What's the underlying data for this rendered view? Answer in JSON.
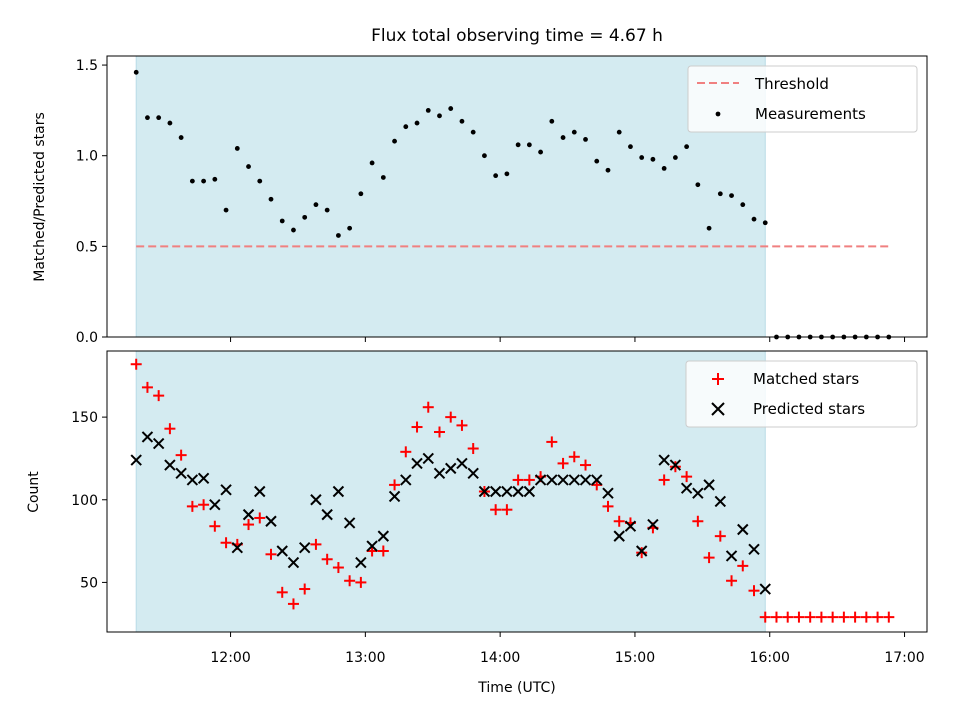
{
  "chart_data": [
    {
      "type": "scatter",
      "title": "Flux total observing time = 4.67 h",
      "xlabel": "",
      "ylabel": "Matched/Predicted stars",
      "xlim": [
        "11:05",
        "17:10"
      ],
      "ylim": [
        0,
        1.55
      ],
      "yticks": [
        "0.0",
        "0.5",
        "1.0",
        "1.5"
      ],
      "ytick_values": [
        0,
        0.5,
        1.0,
        1.5
      ],
      "shaded_x_range": [
        "11:18",
        "15:58"
      ],
      "shade_color": "#d4ebf1",
      "threshold": {
        "name": "Threshold",
        "value": 0.5,
        "x_range": [
          "11:18",
          "16:54"
        ],
        "color": "#f08080"
      },
      "legend_position": "top-right",
      "series": [
        {
          "name": "Measurements",
          "color": "#000000",
          "points": [
            [
              "11:18",
              1.46
            ],
            [
              "11:23",
              1.21
            ],
            [
              "11:28",
              1.21
            ],
            [
              "11:33",
              1.18
            ],
            [
              "11:38",
              1.1
            ],
            [
              "11:43",
              0.86
            ],
            [
              "11:48",
              0.86
            ],
            [
              "11:53",
              0.87
            ],
            [
              "11:58",
              0.7
            ],
            [
              "12:03",
              1.04
            ],
            [
              "12:08",
              0.94
            ],
            [
              "12:13",
              0.86
            ],
            [
              "12:18",
              0.76
            ],
            [
              "12:23",
              0.64
            ],
            [
              "12:28",
              0.59
            ],
            [
              "12:33",
              0.66
            ],
            [
              "12:38",
              0.73
            ],
            [
              "12:43",
              0.7
            ],
            [
              "12:48",
              0.56
            ],
            [
              "12:53",
              0.6
            ],
            [
              "12:58",
              0.79
            ],
            [
              "13:03",
              0.96
            ],
            [
              "13:08",
              0.88
            ],
            [
              "13:13",
              1.08
            ],
            [
              "13:18",
              1.16
            ],
            [
              "13:23",
              1.18
            ],
            [
              "13:28",
              1.25
            ],
            [
              "13:33",
              1.22
            ],
            [
              "13:38",
              1.26
            ],
            [
              "13:43",
              1.19
            ],
            [
              "13:48",
              1.13
            ],
            [
              "13:53",
              1.0
            ],
            [
              "13:58",
              0.89
            ],
            [
              "14:03",
              0.9
            ],
            [
              "14:08",
              1.06
            ],
            [
              "14:13",
              1.06
            ],
            [
              "14:18",
              1.02
            ],
            [
              "14:23",
              1.19
            ],
            [
              "14:28",
              1.1
            ],
            [
              "14:33",
              1.13
            ],
            [
              "14:38",
              1.09
            ],
            [
              "14:43",
              0.97
            ],
            [
              "14:48",
              0.92
            ],
            [
              "14:53",
              1.13
            ],
            [
              "14:58",
              1.05
            ],
            [
              "15:03",
              0.99
            ],
            [
              "15:08",
              0.98
            ],
            [
              "15:13",
              0.93
            ],
            [
              "15:18",
              0.99
            ],
            [
              "15:23",
              1.05
            ],
            [
              "15:28",
              0.84
            ],
            [
              "15:33",
              0.6
            ],
            [
              "15:38",
              0.79
            ],
            [
              "15:43",
              0.78
            ],
            [
              "15:48",
              0.73
            ],
            [
              "15:53",
              0.65
            ],
            [
              "15:58",
              0.63
            ],
            [
              "16:03",
              0.0
            ],
            [
              "16:08",
              0.0
            ],
            [
              "16:13",
              0.0
            ],
            [
              "16:18",
              0.0
            ],
            [
              "16:23",
              0.0
            ],
            [
              "16:28",
              0.0
            ],
            [
              "16:33",
              0.0
            ],
            [
              "16:38",
              0.0
            ],
            [
              "16:43",
              0.0
            ],
            [
              "16:48",
              0.0
            ],
            [
              "16:53",
              0.0
            ]
          ]
        }
      ]
    },
    {
      "type": "scatter",
      "title": "",
      "xlabel": "Time (UTC)",
      "ylabel": "Count",
      "xlim": [
        "11:05",
        "17:10"
      ],
      "ylim": [
        20,
        190
      ],
      "yticks": [
        "50",
        "100",
        "150"
      ],
      "ytick_values": [
        50,
        100,
        150
      ],
      "xticks": [
        "12:00",
        "13:00",
        "14:00",
        "15:00",
        "16:00",
        "17:00"
      ],
      "shaded_x_range": [
        "11:18",
        "15:58"
      ],
      "shade_color": "#d4ebf1",
      "legend_position": "top-right",
      "series": [
        {
          "name": "Matched stars",
          "color": "#ff0000",
          "marker": "plus",
          "points": [
            [
              "11:18",
              182
            ],
            [
              "11:23",
              168
            ],
            [
              "11:28",
              163
            ],
            [
              "11:33",
              143
            ],
            [
              "11:38",
              127
            ],
            [
              "11:43",
              96
            ],
            [
              "11:48",
              97
            ],
            [
              "11:53",
              84
            ],
            [
              "11:58",
              74
            ],
            [
              "12:03",
              73
            ],
            [
              "12:08",
              85
            ],
            [
              "12:13",
              89
            ],
            [
              "12:18",
              67
            ],
            [
              "12:23",
              44
            ],
            [
              "12:28",
              37
            ],
            [
              "12:33",
              46
            ],
            [
              "12:38",
              73
            ],
            [
              "12:43",
              64
            ],
            [
              "12:48",
              59
            ],
            [
              "12:53",
              51
            ],
            [
              "12:58",
              50
            ],
            [
              "13:03",
              69
            ],
            [
              "13:08",
              69
            ],
            [
              "13:13",
              109
            ],
            [
              "13:18",
              129
            ],
            [
              "13:23",
              144
            ],
            [
              "13:28",
              156
            ],
            [
              "13:33",
              141
            ],
            [
              "13:38",
              150
            ],
            [
              "13:43",
              145
            ],
            [
              "13:48",
              131
            ],
            [
              "13:53",
              105
            ],
            [
              "13:58",
              94
            ],
            [
              "14:03",
              94
            ],
            [
              "14:08",
              112
            ],
            [
              "14:13",
              112
            ],
            [
              "14:18",
              114
            ],
            [
              "14:23",
              135
            ],
            [
              "14:28",
              122
            ],
            [
              "14:33",
              126
            ],
            [
              "14:38",
              121
            ],
            [
              "14:43",
              109
            ],
            [
              "14:48",
              96
            ],
            [
              "14:53",
              87
            ],
            [
              "14:58",
              86
            ],
            [
              "15:03",
              68
            ],
            [
              "15:08",
              83
            ],
            [
              "15:13",
              112
            ],
            [
              "15:18",
              120
            ],
            [
              "15:23",
              114
            ],
            [
              "15:28",
              87
            ],
            [
              "15:33",
              65
            ],
            [
              "15:38",
              78
            ],
            [
              "15:43",
              51
            ],
            [
              "15:48",
              60
            ],
            [
              "15:53",
              45
            ],
            [
              "15:58",
              29
            ],
            [
              "16:03",
              29
            ],
            [
              "16:08",
              29
            ],
            [
              "16:13",
              29
            ],
            [
              "16:18",
              29
            ],
            [
              "16:23",
              29
            ],
            [
              "16:28",
              29
            ],
            [
              "16:33",
              29
            ],
            [
              "16:38",
              29
            ],
            [
              "16:43",
              29
            ],
            [
              "16:48",
              29
            ],
            [
              "16:53",
              29
            ]
          ]
        },
        {
          "name": "Predicted stars",
          "color": "#000000",
          "marker": "x",
          "points": [
            [
              "11:18",
              124
            ],
            [
              "11:23",
              138
            ],
            [
              "11:28",
              134
            ],
            [
              "11:33",
              121
            ],
            [
              "11:38",
              116
            ],
            [
              "11:43",
              112
            ],
            [
              "11:48",
              113
            ],
            [
              "11:53",
              97
            ],
            [
              "11:58",
              106
            ],
            [
              "12:03",
              71
            ],
            [
              "12:08",
              91
            ],
            [
              "12:13",
              105
            ],
            [
              "12:18",
              87
            ],
            [
              "12:23",
              69
            ],
            [
              "12:28",
              62
            ],
            [
              "12:33",
              71
            ],
            [
              "12:38",
              100
            ],
            [
              "12:43",
              91
            ],
            [
              "12:48",
              105
            ],
            [
              "12:53",
              86
            ],
            [
              "12:58",
              62
            ],
            [
              "13:03",
              72
            ],
            [
              "13:08",
              78
            ],
            [
              "13:13",
              102
            ],
            [
              "13:18",
              112
            ],
            [
              "13:23",
              122
            ],
            [
              "13:28",
              125
            ],
            [
              "13:33",
              116
            ],
            [
              "13:38",
              119
            ],
            [
              "13:43",
              122
            ],
            [
              "13:48",
              116
            ],
            [
              "13:53",
              105
            ],
            [
              "13:58",
              105
            ],
            [
              "14:03",
              105
            ],
            [
              "14:08",
              105
            ],
            [
              "14:13",
              105
            ],
            [
              "14:18",
              112
            ],
            [
              "14:23",
              112
            ],
            [
              "14:28",
              112
            ],
            [
              "14:33",
              112
            ],
            [
              "14:38",
              112
            ],
            [
              "14:43",
              112
            ],
            [
              "14:48",
              104
            ],
            [
              "14:53",
              78
            ],
            [
              "14:58",
              84
            ],
            [
              "15:03",
              69
            ],
            [
              "15:08",
              85
            ],
            [
              "15:13",
              124
            ],
            [
              "15:18",
              121
            ],
            [
              "15:23",
              107
            ],
            [
              "15:28",
              104
            ],
            [
              "15:33",
              109
            ],
            [
              "15:38",
              99
            ],
            [
              "15:43",
              66
            ],
            [
              "15:48",
              82
            ],
            [
              "15:53",
              70
            ],
            [
              "15:58",
              46
            ]
          ]
        }
      ]
    }
  ]
}
